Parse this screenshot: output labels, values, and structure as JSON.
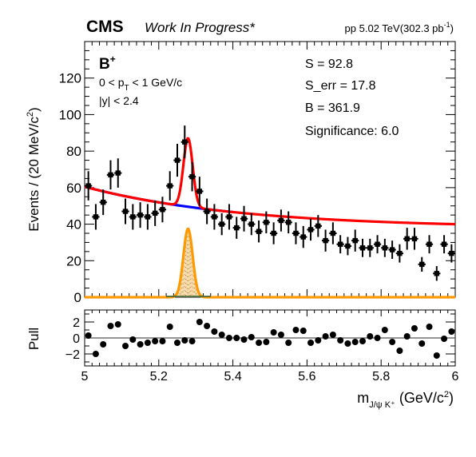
{
  "header": {
    "experiment": "CMS",
    "status": "Work In Progress*",
    "lumi_prefix": "pp 5.02 TeV(302.3 pb",
    "lumi_sup": "-1",
    "lumi_suffix": ")"
  },
  "labels": {
    "particle": "B",
    "particle_sup": "+",
    "pt_cut_left": "0 < p",
    "pt_cut_sub": "T",
    "pt_cut_right": " < 1 GeV/c",
    "y_cut": "|y| < 2.4"
  },
  "stats": {
    "S": "S = 92.8",
    "S_err": "S_err = 17.8",
    "B": "B = 361.9",
    "significance": "Significance: 6.0"
  },
  "colors": {
    "total_fit": "#ff0000",
    "background": "#0000ff",
    "signal": "#ff9900",
    "signal_fill": "#f5d9a8",
    "data": "#000000"
  },
  "chart_data": [
    {
      "type": "scatter",
      "name": "main",
      "ylabel": "Events / (20 MeV/c",
      "ylabel_sup": "2",
      "ylabel_suffix": ")",
      "xlim": [
        5.0,
        6.0
      ],
      "ylim": [
        0,
        140
      ],
      "x_ticks": [
        5.0,
        5.2,
        5.4,
        5.6,
        5.8,
        6.0
      ],
      "y_ticks": [
        0,
        20,
        40,
        60,
        80,
        100,
        120
      ],
      "y_tick_labels": [
        "0",
        "20",
        "40",
        "60",
        "80",
        "100",
        "120"
      ],
      "x": [
        5.01,
        5.03,
        5.05,
        5.07,
        5.09,
        5.11,
        5.13,
        5.15,
        5.17,
        5.19,
        5.21,
        5.23,
        5.25,
        5.27,
        5.29,
        5.31,
        5.33,
        5.35,
        5.37,
        5.39,
        5.41,
        5.43,
        5.45,
        5.47,
        5.49,
        5.51,
        5.53,
        5.55,
        5.57,
        5.59,
        5.61,
        5.63,
        5.65,
        5.67,
        5.69,
        5.71,
        5.73,
        5.75,
        5.77,
        5.79,
        5.81,
        5.83,
        5.85,
        5.87,
        5.89,
        5.91,
        5.93,
        5.95,
        5.97,
        5.99
      ],
      "y": [
        61,
        44,
        52,
        67,
        68,
        47,
        44,
        45,
        44,
        46,
        48,
        61,
        75,
        85,
        66,
        58,
        47,
        44,
        40,
        44,
        38,
        43,
        40,
        36,
        41,
        35,
        42,
        41,
        35,
        33,
        37,
        39,
        31,
        35,
        29,
        28,
        31,
        27,
        27,
        29,
        27,
        26,
        24,
        32,
        32,
        18,
        29,
        13,
        29,
        24
      ],
      "y_err": [
        8,
        7,
        7,
        8,
        8,
        7,
        7,
        7,
        7,
        7,
        7,
        8,
        9,
        9,
        8,
        8,
        7,
        7,
        6,
        7,
        6,
        7,
        6,
        6,
        6,
        6,
        6,
        6,
        6,
        6,
        6,
        6,
        6,
        6,
        5,
        5,
        6,
        5,
        5,
        5,
        5,
        5,
        5,
        6,
        6,
        4,
        5,
        4,
        5,
        5
      ],
      "bin_width": 0.02,
      "fit_total": {
        "name": "",
        "color": "#ff0000"
      },
      "fit_background": {
        "name": "",
        "color": "#0000ff",
        "range": [
          5.0,
          5.4
        ],
        "a": 60.5,
        "b": 22.6,
        "x0": 5.0,
        "tau": 0.42
      },
      "fit_signal": {
        "name": "",
        "color": "#ff9900",
        "peak": 37.5,
        "mean": 5.279,
        "sigma": 0.0125
      }
    },
    {
      "type": "scatter",
      "name": "pull",
      "ylabel": "Pull",
      "xlabel": "m",
      "xlabel_sub": "J/ψ K⁺",
      "xlabel_suffix": " (GeV/c",
      "xlabel_sup": "2",
      "xlabel_end": ")",
      "xlim": [
        5.0,
        6.0
      ],
      "ylim": [
        -3.5,
        3.5
      ],
      "y_ticks": [
        -2,
        0,
        2
      ],
      "y_tick_labels": [
        "−2",
        "0",
        "2"
      ],
      "x_tick_labels": [
        "5",
        "5.2",
        "5.4",
        "5.6",
        "5.8",
        "6"
      ],
      "x": [
        5.01,
        5.03,
        5.05,
        5.07,
        5.09,
        5.11,
        5.13,
        5.15,
        5.17,
        5.19,
        5.21,
        5.23,
        5.25,
        5.27,
        5.29,
        5.31,
        5.33,
        5.35,
        5.37,
        5.39,
        5.41,
        5.43,
        5.45,
        5.47,
        5.49,
        5.51,
        5.53,
        5.55,
        5.57,
        5.59,
        5.61,
        5.63,
        5.65,
        5.67,
        5.69,
        5.71,
        5.73,
        5.75,
        5.77,
        5.79,
        5.81,
        5.83,
        5.85,
        5.87,
        5.89,
        5.91,
        5.93,
        5.95,
        5.97,
        5.99
      ],
      "y": [
        0.3,
        -2.0,
        -0.8,
        1.5,
        1.7,
        -1.0,
        -0.2,
        -0.8,
        -0.6,
        -0.4,
        -0.4,
        1.4,
        -0.6,
        -0.3,
        -0.4,
        2.0,
        1.5,
        0.8,
        0.4,
        0.0,
        0.0,
        -0.2,
        0.1,
        -0.6,
        -0.5,
        0.7,
        0.4,
        -0.6,
        1.0,
        0.9,
        -0.6,
        -0.3,
        0.2,
        0.4,
        -0.3,
        -0.7,
        -0.5,
        -0.4,
        0.2,
        0.0,
        1.0,
        -0.5,
        -1.6,
        0.2,
        1.2,
        -0.7,
        1.4,
        -2.2,
        -0.1,
        0.8
      ]
    }
  ]
}
